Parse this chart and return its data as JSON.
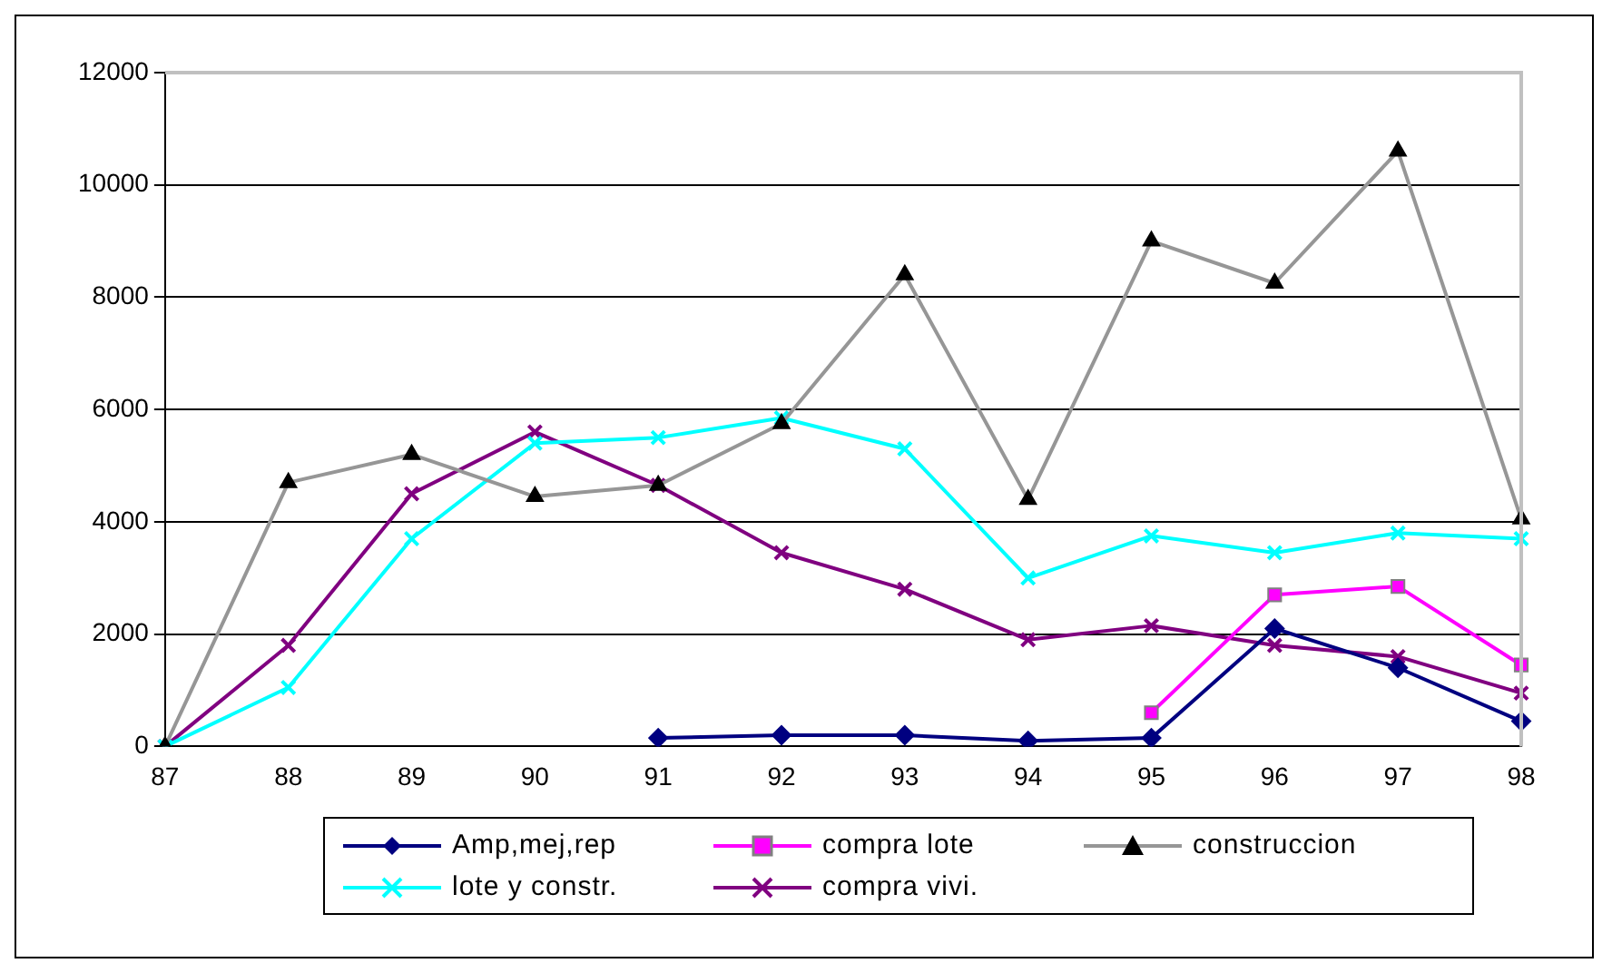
{
  "chart_data": {
    "type": "line",
    "categories": [
      "87",
      "88",
      "89",
      "90",
      "91",
      "92",
      "93",
      "94",
      "95",
      "96",
      "97",
      "98"
    ],
    "ylim": [
      0,
      12000
    ],
    "yticks": [
      0,
      2000,
      4000,
      6000,
      8000,
      10000,
      12000
    ],
    "grid": "y",
    "legend": "bottom",
    "series": [
      {
        "name": "Amp,mej,rep",
        "color": "#000080",
        "marker": "diamond",
        "values": [
          null,
          null,
          null,
          null,
          150,
          200,
          200,
          100,
          150,
          2100,
          1400,
          450
        ]
      },
      {
        "name": "compra lote",
        "color": "#ff00ff",
        "marker": "square",
        "values": [
          null,
          null,
          null,
          null,
          null,
          null,
          null,
          null,
          600,
          2700,
          2850,
          1450
        ]
      },
      {
        "name": "construccion",
        "color": "#969696",
        "marker": "triangle",
        "values": [
          0,
          4700,
          5200,
          4450,
          4650,
          5750,
          8400,
          4400,
          9000,
          8250,
          10600,
          4050
        ]
      },
      {
        "name": "lote y constr.",
        "color": "#00ffff",
        "marker": "cross",
        "values": [
          0,
          1050,
          3700,
          5400,
          5500,
          5850,
          5300,
          3000,
          3750,
          3450,
          3800,
          3700
        ]
      },
      {
        "name": "compra vivi.",
        "color": "#800080",
        "marker": "cross",
        "values": [
          0,
          1800,
          4500,
          5600,
          4650,
          3450,
          2800,
          1900,
          2150,
          1800,
          1600,
          950
        ]
      }
    ]
  }
}
